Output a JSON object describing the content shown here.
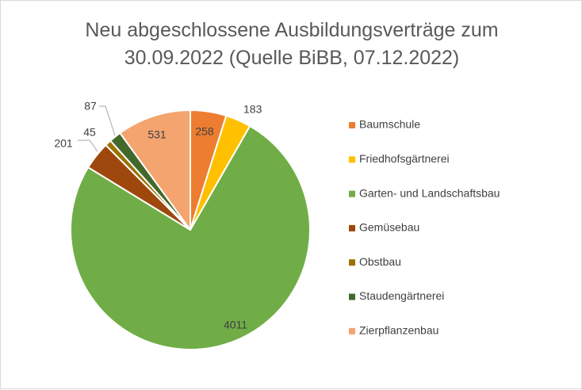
{
  "chart_data": {
    "type": "pie",
    "title": [
      "Neu abgeschlossene  Ausbildungsverträge zum",
      "30.09.2022 (Quelle BiBB, 07.12.2022)"
    ],
    "categories": [
      "Baumschule",
      "Friedhofsgärtnerei",
      "Garten- und Landschaftsbau",
      "Gemüsebau",
      "Obstbau",
      "Staudengärtnerei",
      "Zierpflanzenbau"
    ],
    "values": [
      258,
      183,
      4011,
      201,
      45,
      87,
      531
    ],
    "colors": [
      "#ED7D31",
      "#FFC000",
      "#70AD47",
      "#9E480E",
      "#997300",
      "#43682B",
      "#F4A46F"
    ],
    "legend_position": "right",
    "slice_border_color": "#ffffff"
  }
}
